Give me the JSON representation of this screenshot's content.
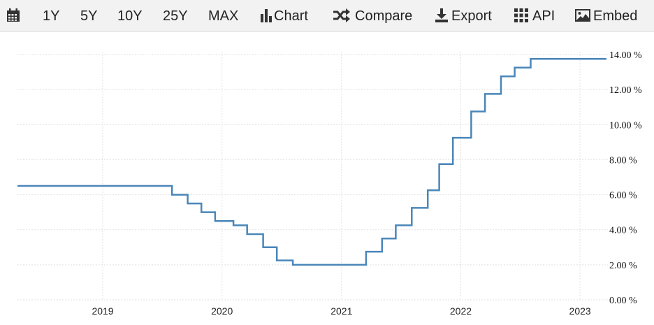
{
  "toolbar": {
    "calendar_icon": "calendar-icon",
    "ranges": [
      "1Y",
      "5Y",
      "10Y",
      "25Y",
      "MAX"
    ],
    "chart_label": "Chart",
    "compare_label": "Compare",
    "export_label": "Export",
    "api_label": "API",
    "embed_label": "Embed"
  },
  "chart_data": {
    "type": "line",
    "step": true,
    "title": "",
    "xlabel": "",
    "ylabel": "",
    "line_color": "#4a86b9",
    "ylim": [
      0,
      14
    ],
    "yticks": [
      0,
      2,
      4,
      6,
      8,
      10,
      12,
      14
    ],
    "ytick_labels": [
      "0.00 %",
      "2.00 %",
      "4.00 %",
      "6.00 %",
      "8.00 %",
      "10.00 %",
      "12.00 %",
      "14.00 %"
    ],
    "xlim": [
      "2018-04-15",
      "2023-03-23"
    ],
    "xticks": [
      "2019-01-01",
      "2020-01-01",
      "2021-01-01",
      "2022-01-01",
      "2023-01-01"
    ],
    "xtick_labels": [
      "2019",
      "2020",
      "2021",
      "2022",
      "2023"
    ],
    "grid": true,
    "series": [
      {
        "x": [
          "2018-04-15",
          "2019-08-01",
          "2019-09-18",
          "2019-10-30",
          "2019-12-11",
          "2020-02-05",
          "2020-03-18",
          "2020-05-06",
          "2020-06-17",
          "2020-08-05",
          "2021-03-17",
          "2021-05-05",
          "2021-06-16",
          "2021-08-04",
          "2021-09-22",
          "2021-10-27",
          "2021-12-08",
          "2022-02-02",
          "2022-03-16",
          "2022-05-04",
          "2022-06-15",
          "2022-08-03",
          "2023-03-23"
        ],
        "values": [
          6.5,
          6.0,
          5.5,
          5.0,
          4.5,
          4.25,
          3.75,
          3.0,
          2.25,
          2.0,
          2.75,
          3.5,
          4.25,
          5.25,
          6.25,
          7.75,
          9.25,
          10.75,
          11.75,
          12.75,
          13.25,
          13.75,
          13.75
        ]
      }
    ]
  }
}
